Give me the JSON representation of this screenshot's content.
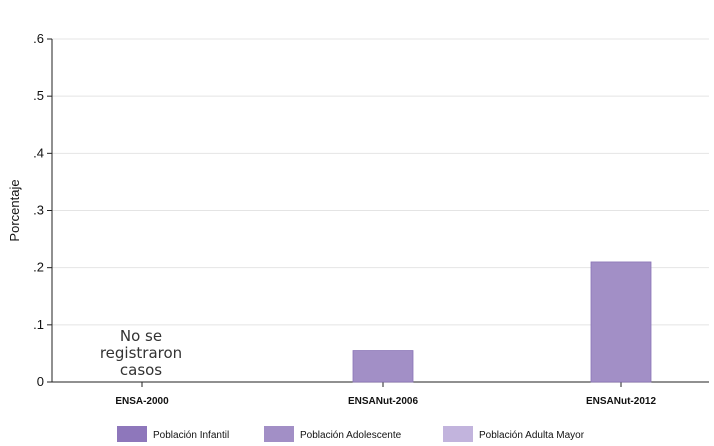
{
  "chart_data": {
    "type": "bar",
    "ylabel": "Porcentaje",
    "ylim": [
      0,
      0.6
    ],
    "yticks": [
      {
        "value": 0,
        "label": "0"
      },
      {
        "value": 0.1,
        "label": ".1"
      },
      {
        "value": 0.2,
        "label": ".2"
      },
      {
        "value": 0.3,
        "label": ".3"
      },
      {
        "value": 0.4,
        "label": ".4"
      },
      {
        "value": 0.5,
        "label": ".5"
      },
      {
        "value": 0.6,
        "label": ".6"
      }
    ],
    "grid": true,
    "categories": [
      "ENSA-2000",
      "ENSANut-2006",
      "ENSANut-2012"
    ],
    "series": [
      {
        "name": "Población Infantil",
        "color": "#8E77BB",
        "values": [
          null,
          null,
          null
        ]
      },
      {
        "name": "Población Adolescente",
        "color": "#A28FC6",
        "values": [
          null,
          0.055,
          0.21
        ]
      },
      {
        "name": "Población Adulta Mayor",
        "color": "#C2B4DD",
        "values": [
          null,
          null,
          null
        ]
      }
    ],
    "annotations": [
      {
        "category": "ENSA-2000",
        "lines": [
          "No se",
          "registraron",
          "casos"
        ]
      }
    ],
    "legend_position": "bottom"
  }
}
